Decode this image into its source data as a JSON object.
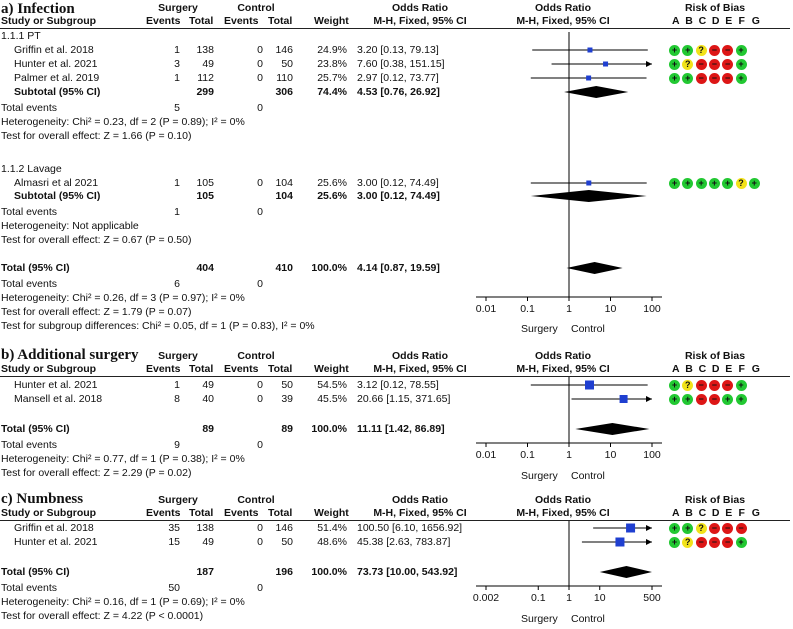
{
  "headers": {
    "study": "Study or Subgroup",
    "events": "Events",
    "total": "Total",
    "weight": "Weight",
    "or_title": "Odds Ratio",
    "or_method": "M-H, Fixed, 95% CI",
    "rob_title": "Risk of Bias",
    "rob_letters": [
      "A",
      "B",
      "C",
      "D",
      "E",
      "F",
      "G"
    ],
    "surgery": "Surgery",
    "control": "Control"
  },
  "axis_sides": {
    "left": "Surgery",
    "right": "Control"
  },
  "colors": {
    "low": "#22c832",
    "unclear": "#f2e21a",
    "high": "#dd1616",
    "marker": "#1f3fd0"
  },
  "chart_data": [
    {
      "type": "forest",
      "title": "a) Infection",
      "xscale": "log",
      "xticks": [
        "0.01",
        "0.1",
        "1",
        "10",
        "100"
      ],
      "xlim": [
        0.01,
        100
      ],
      "subgroups": [
        {
          "label": "1.1.1 PT",
          "studies": [
            {
              "name": "Griffin et al. 2018",
              "e1": "1",
              "n1": "138",
              "e2": "0",
              "n2": "146",
              "weight": "24.9%",
              "ci_text": "3.20 [0.13, 79.13]",
              "or": 3.2,
              "lo": 0.13,
              "hi": 79.13,
              "bias": [
                "low",
                "low",
                "unclear",
                "high",
                "high",
                "low"
              ]
            },
            {
              "name": "Hunter et al. 2021",
              "e1": "3",
              "n1": "49",
              "e2": "0",
              "n2": "50",
              "weight": "23.8%",
              "ci_text": "7.60 [0.38, 151.15]",
              "or": 7.6,
              "lo": 0.38,
              "hi": 151.15,
              "bias": [
                "low",
                "unclear",
                "high",
                "high",
                "high",
                "low"
              ]
            },
            {
              "name": "Palmer et al. 2019",
              "e1": "1",
              "n1": "112",
              "e2": "0",
              "n2": "110",
              "weight": "25.7%",
              "ci_text": "2.97 [0.12, 73.77]",
              "or": 2.97,
              "lo": 0.12,
              "hi": 73.77,
              "bias": [
                "low",
                "low",
                "high",
                "high",
                "high",
                "low"
              ]
            }
          ],
          "subtotal": {
            "label": "Subtotal (95% CI)",
            "n1": "299",
            "n2": "306",
            "weight": "74.4%",
            "ci_text": "4.53 [0.76, 26.92]",
            "or": 4.53,
            "lo": 0.76,
            "hi": 26.92
          },
          "total_events": {
            "label": "Total events",
            "e1": "5",
            "e2": "0"
          },
          "heterogeneity": "Heterogeneity: Chi² = 0.23, df = 2 (P = 0.89); I² = 0%",
          "overall": "Test for overall effect: Z = 1.66 (P = 0.10)"
        },
        {
          "label": "1.1.2 Lavage",
          "studies": [
            {
              "name": "Almasri et al 2021",
              "e1": "1",
              "n1": "105",
              "e2": "0",
              "n2": "104",
              "weight": "25.6%",
              "ci_text": "3.00 [0.12, 74.49]",
              "or": 3.0,
              "lo": 0.12,
              "hi": 74.49,
              "bias": [
                "low",
                "low",
                "low",
                "low",
                "low",
                "unclear",
                "low"
              ]
            }
          ],
          "subtotal": {
            "label": "Subtotal (95% CI)",
            "n1": "105",
            "n2": "104",
            "weight": "25.6%",
            "ci_text": "3.00 [0.12, 74.49]",
            "or": 3.0,
            "lo": 0.12,
            "hi": 74.49
          },
          "total_events": {
            "label": "Total events",
            "e1": "1",
            "e2": "0"
          },
          "heterogeneity": "Heterogeneity: Not applicable",
          "overall": "Test for overall effect: Z = 0.67 (P = 0.50)"
        }
      ],
      "total": {
        "label": "Total (95% CI)",
        "n1": "404",
        "n2": "410",
        "weight": "100.0%",
        "ci_text": "4.14 [0.87, 19.59]",
        "or": 4.14,
        "lo": 0.87,
        "hi": 19.59
      },
      "total_events": {
        "label": "Total events",
        "e1": "6",
        "e2": "0"
      },
      "heterogeneity": "Heterogeneity: Chi² = 0.26, df = 3 (P = 0.97); I² = 0%",
      "overall": "Test for overall effect: Z = 1.79 (P = 0.07)",
      "subgroup_diff": "Test for subgroup differences: Chi² = 0.05, df = 1 (P = 0.83), I² = 0%"
    },
    {
      "type": "forest",
      "title": "b) Additional surgery",
      "xscale": "log",
      "xticks": [
        "0.01",
        "0.1",
        "1",
        "10",
        "100"
      ],
      "xlim": [
        0.01,
        100
      ],
      "studies": [
        {
          "name": "Hunter et al. 2021",
          "e1": "1",
          "n1": "49",
          "e2": "0",
          "n2": "50",
          "weight": "54.5%",
          "ci_text": "3.12 [0.12, 78.55]",
          "or": 3.12,
          "lo": 0.12,
          "hi": 78.55,
          "bias": [
            "low",
            "unclear",
            "high",
            "high",
            "high",
            "low"
          ]
        },
        {
          "name": "Mansell et al. 2018",
          "e1": "8",
          "n1": "40",
          "e2": "0",
          "n2": "39",
          "weight": "45.5%",
          "ci_text": "20.66 [1.15, 371.65]",
          "or": 20.66,
          "lo": 1.15,
          "hi": 371.65,
          "bias": [
            "low",
            "low",
            "high",
            "high",
            "low",
            "low"
          ]
        }
      ],
      "total": {
        "label": "Total (95% CI)",
        "n1": "89",
        "n2": "89",
        "weight": "100.0%",
        "ci_text": "11.11 [1.42, 86.89]",
        "or": 11.11,
        "lo": 1.42,
        "hi": 86.89
      },
      "total_events": {
        "label": "Total events",
        "e1": "9",
        "e2": "0"
      },
      "heterogeneity": "Heterogeneity: Chi² = 0.77, df = 1 (P = 0.38); I² = 0%",
      "overall": "Test for overall effect: Z = 2.29 (P = 0.02)"
    },
    {
      "type": "forest",
      "title": "c) Numbness",
      "xscale": "log",
      "xticks": [
        "0.002",
        "0.1",
        "1",
        "10",
        "500"
      ],
      "xlim": [
        0.002,
        500
      ],
      "studies": [
        {
          "name": "Griffin et al. 2018",
          "e1": "35",
          "n1": "138",
          "e2": "0",
          "n2": "146",
          "weight": "51.4%",
          "ci_text": "100.50 [6.10, 1656.92]",
          "or": 100.5,
          "lo": 6.1,
          "hi": 1656.92,
          "bias": [
            "low",
            "low",
            "unclear",
            "high",
            "high",
            "high"
          ]
        },
        {
          "name": "Hunter et al. 2021",
          "e1": "15",
          "n1": "49",
          "e2": "0",
          "n2": "50",
          "weight": "48.6%",
          "ci_text": "45.38 [2.63, 783.87]",
          "or": 45.38,
          "lo": 2.63,
          "hi": 783.87,
          "bias": [
            "low",
            "unclear",
            "high",
            "high",
            "high",
            "low"
          ]
        }
      ],
      "total": {
        "label": "Total (95% CI)",
        "n1": "187",
        "n2": "196",
        "weight": "100.0%",
        "ci_text": "73.73 [10.00, 543.92]",
        "or": 73.73,
        "lo": 10.0,
        "hi": 543.92
      },
      "total_events": {
        "label": "Total events",
        "e1": "50",
        "e2": "0"
      },
      "heterogeneity": "Heterogeneity: Chi² = 0.16, df = 1 (P = 0.69); I² = 0%",
      "overall": "Test for overall effect: Z = 4.22 (P < 0.0001)"
    }
  ]
}
